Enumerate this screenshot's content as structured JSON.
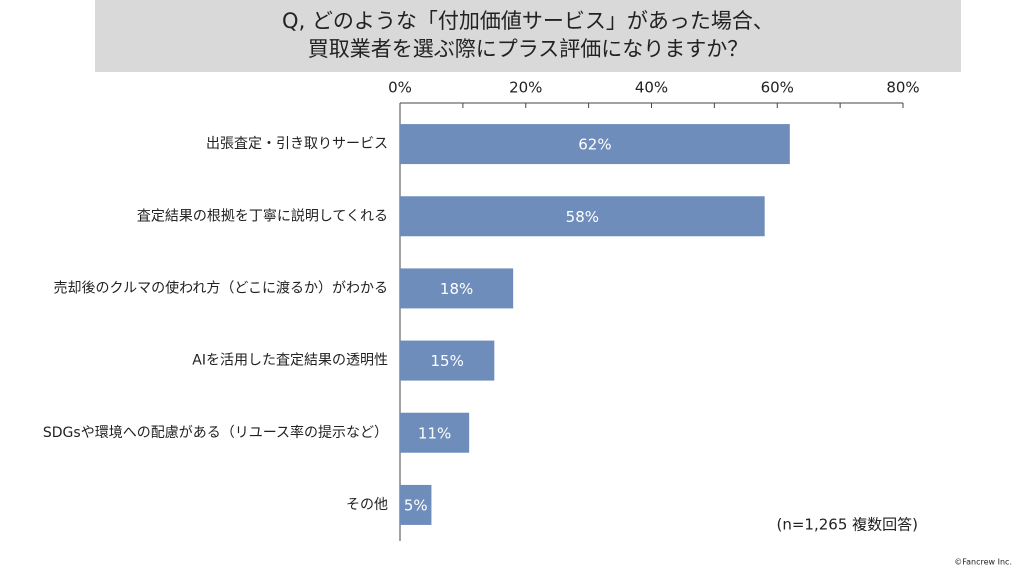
{
  "chart_data": {
    "type": "bar",
    "orientation": "horizontal",
    "title": [
      "Q, どのような「付加価値サービス」があった場合、",
      "買取業者を選ぶ際にプラス評価になりますか？"
    ],
    "categories": [
      "出張査定・引き取りサービス",
      "査定結果の根拠を丁寧に説明してくれる",
      "売却後のクルマの使われ方（どこに渡るか）がわかる",
      "AIを活用した査定結果の透明性",
      "SDGsや環境への配慮がある（リユース率の提示など）",
      "その他"
    ],
    "values": [
      62,
      58,
      18,
      15,
      11,
      5
    ],
    "value_labels": [
      "62%",
      "58%",
      "18%",
      "15%",
      "11%",
      "5%"
    ],
    "color": "#6f8dbb",
    "xlim": [
      0,
      80
    ],
    "xticks": [
      {
        "value": 0,
        "label": "0%"
      },
      {
        "value": 20,
        "label": "20%"
      },
      {
        "value": 40,
        "label": "40%"
      },
      {
        "value": 60,
        "label": "60%"
      },
      {
        "value": 80,
        "label": "80%"
      }
    ],
    "xminorticks": [
      10,
      30,
      50,
      70
    ],
    "note": "(n=1,265 複数回答)",
    "credit": "©Fancrew Inc."
  }
}
